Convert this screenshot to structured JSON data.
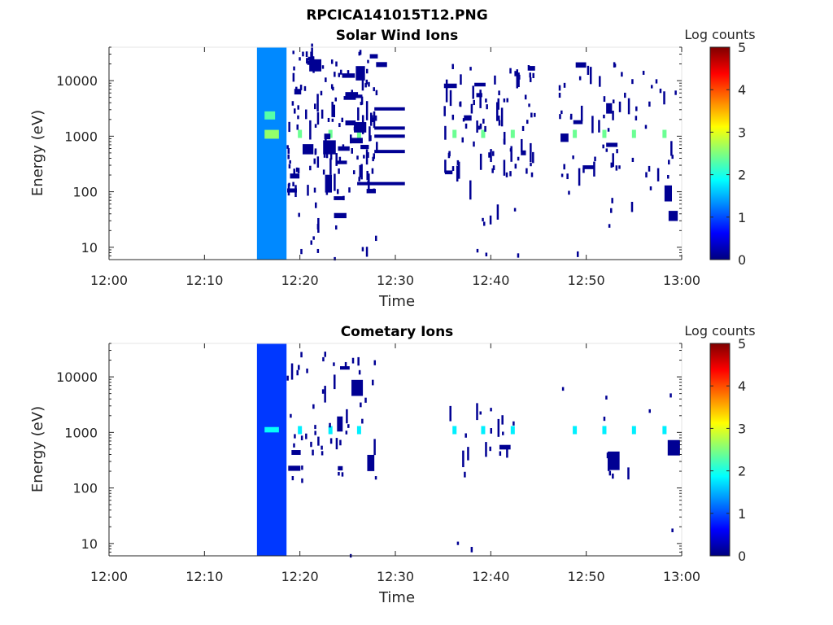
{
  "figure_title": "RPCICA141015T12.PNG",
  "colorbar_label": "Log counts",
  "colormap": [
    "#00007f",
    "#0000ff",
    "#007fff",
    "#00ffff",
    "#7fff7f",
    "#ffff00",
    "#ff7f00",
    "#ff0000",
    "#7f0000"
  ],
  "chart_data": [
    {
      "type": "heatmap",
      "title": "Solar Wind Ions",
      "xlabel": "Time",
      "ylabel": "Energy (eV)",
      "x_ticks": [
        "12:00",
        "12:10",
        "12:20",
        "12:30",
        "12:40",
        "12:50",
        "13:00"
      ],
      "y_ticks": [
        "10",
        "100",
        "1000",
        "10000"
      ],
      "y_scale": "log",
      "xlim_minutes": [
        0,
        60
      ],
      "ylim_eV": [
        6,
        40000
      ],
      "colorbar": {
        "label": "Log counts",
        "range": [
          0,
          5
        ],
        "ticks": [
          "0",
          "1",
          "2",
          "3",
          "4",
          "5"
        ]
      },
      "features": [
        {
          "kind": "band",
          "t_start": 15.5,
          "t_end": 18.6,
          "e_min": 6,
          "e_max": 40000,
          "level": 1.3
        },
        {
          "kind": "band",
          "t_start": 16.3,
          "t_end": 17.8,
          "e_min": 900,
          "e_max": 1300,
          "level": 2.6
        },
        {
          "kind": "band",
          "t_start": 16.3,
          "t_end": 17.4,
          "e_min": 2000,
          "e_max": 2800,
          "level": 2.3
        },
        {
          "kind": "line",
          "t_start": 27.8,
          "t_end": 31.0,
          "e": 3100,
          "level": 0.1
        },
        {
          "kind": "line",
          "t_start": 27.8,
          "t_end": 31.0,
          "e": 1400,
          "level": 0.1
        },
        {
          "kind": "line",
          "t_start": 27.8,
          "t_end": 31.0,
          "e": 1000,
          "level": 0.1
        },
        {
          "kind": "line",
          "t_start": 27.8,
          "t_end": 31.0,
          "e": 530,
          "level": 0.1
        },
        {
          "kind": "line",
          "t_start": 26.0,
          "t_end": 31.0,
          "e": 140,
          "level": 0.1
        },
        {
          "kind": "peaks",
          "e": 1100,
          "level": 2.4,
          "times": [
            20.0,
            23.2,
            26.2,
            36.2,
            39.2,
            42.3,
            48.8,
            51.9,
            55.0,
            58.2
          ]
        },
        {
          "kind": "scatter",
          "level": 0.1,
          "clusters": [
            {
              "t_start": 18.6,
              "t_end": 28.0,
              "e_min": 100,
              "e_max": 35000,
              "n": 150
            },
            {
              "t_start": 35.0,
              "t_end": 44.5,
              "e_min": 180,
              "e_max": 20000,
              "n": 85
            },
            {
              "t_start": 47.0,
              "t_end": 59.5,
              "e_min": 180,
              "e_max": 20000,
              "n": 65
            },
            {
              "t_start": 19.0,
              "t_end": 28.0,
              "e_min": 6,
              "e_max": 120,
              "n": 16
            },
            {
              "t_start": 35.0,
              "t_end": 44.0,
              "e_min": 6,
              "e_max": 120,
              "n": 9
            },
            {
              "t_start": 47.0,
              "t_end": 59.0,
              "e_min": 6,
              "e_max": 120,
              "n": 9
            }
          ]
        }
      ]
    },
    {
      "type": "heatmap",
      "title": "Cometary Ions",
      "xlabel": "Time",
      "ylabel": "Energy (eV)",
      "x_ticks": [
        "12:00",
        "12:10",
        "12:20",
        "12:30",
        "12:40",
        "12:50",
        "13:00"
      ],
      "y_ticks": [
        "10",
        "100",
        "1000",
        "10000"
      ],
      "y_scale": "log",
      "xlim_minutes": [
        0,
        60
      ],
      "ylim_eV": [
        6,
        40000
      ],
      "colorbar": {
        "label": "Log counts",
        "range": [
          0,
          5
        ],
        "ticks": [
          "0",
          "1",
          "2",
          "3",
          "4",
          "5"
        ]
      },
      "features": [
        {
          "kind": "band",
          "t_start": 15.5,
          "t_end": 18.6,
          "e_min": 6,
          "e_max": 40000,
          "level": 0.9
        },
        {
          "kind": "band",
          "t_start": 16.3,
          "t_end": 17.8,
          "e_min": 1000,
          "e_max": 1250,
          "level": 1.9
        },
        {
          "kind": "peaks",
          "e": 1100,
          "level": 1.8,
          "times": [
            20.0,
            23.2,
            26.2,
            36.2,
            39.2,
            42.3,
            48.8,
            51.9,
            55.0,
            58.2
          ]
        },
        {
          "kind": "scatter",
          "level": 0.1,
          "clusters": [
            {
              "t_start": 18.6,
              "t_end": 28.0,
              "e_min": 100,
              "e_max": 30000,
              "n": 55
            },
            {
              "t_start": 35.0,
              "t_end": 44.0,
              "e_min": 150,
              "e_max": 3000,
              "n": 18
            },
            {
              "t_start": 47.0,
              "t_end": 60.0,
              "e_min": 150,
              "e_max": 8000,
              "n": 14
            },
            {
              "t_start": 24.0,
              "t_end": 26.0,
              "e_min": 6,
              "e_max": 25,
              "n": 1
            },
            {
              "t_start": 36.0,
              "t_end": 39.0,
              "e_min": 6,
              "e_max": 30,
              "n": 2
            },
            {
              "t_start": 58.5,
              "t_end": 59.0,
              "e_min": 6,
              "e_max": 25,
              "n": 1
            }
          ]
        }
      ]
    }
  ]
}
